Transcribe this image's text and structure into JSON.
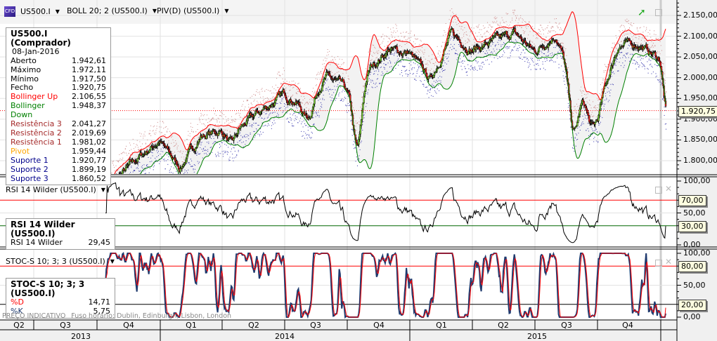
{
  "header": {
    "symbol": "US500.I",
    "indicator1": "BOLL 20; 2 (US500.I)",
    "indicator2": "PIV(D) (US500.I)",
    "logo_text": "CFD"
  },
  "info_box": {
    "title": "US500.I (Comprador)",
    "date": "08-Jan-2016",
    "rows": [
      {
        "label": "Aberto",
        "value": "1.942,61",
        "color": "#000000"
      },
      {
        "label": "Máximo",
        "value": "1.972,11",
        "color": "#000000"
      },
      {
        "label": "Mínimo",
        "value": "1.917,50",
        "color": "#000000"
      },
      {
        "label": "Fecho",
        "value": "1.920,75",
        "color": "#000000"
      },
      {
        "label": "Bollinger Up",
        "value": "2.106,55",
        "color": "#ff0000"
      },
      {
        "label": "Bollinger Down",
        "value": "1.948,37",
        "color": "#008000"
      },
      {
        "label": "Resistência 3",
        "value": "2.041,27",
        "color": "#a52a2a"
      },
      {
        "label": "Resistência 2",
        "value": "2.019,69",
        "color": "#a52a2a"
      },
      {
        "label": "Resistência 1",
        "value": "1.981,02",
        "color": "#a52a2a"
      },
      {
        "label": "Pivot",
        "value": "1.959,44",
        "color": "#ffa500"
      },
      {
        "label": "Suporte 1",
        "value": "1.920,77",
        "color": "#00008b"
      },
      {
        "label": "Suporte 2",
        "value": "1.899,19",
        "color": "#00008b"
      },
      {
        "label": "Suporte 3",
        "value": "1.860,52",
        "color": "#00008b"
      }
    ]
  },
  "price_axis": {
    "ticks": [
      "2.150,00",
      "2.100,00",
      "2.050,00",
      "2.000,00",
      "1.950,00",
      "1.900,00",
      "1.850,00",
      "1.800,00"
    ],
    "current": "1.920,75"
  },
  "rsi": {
    "title": "RSI 14 Wilder (US500.I)",
    "box_title": "RSI 14 Wilder (US500.I)",
    "label": "RSI 14 Wilder",
    "value": "29,45",
    "ticks": [
      "100,00",
      "50,00",
      "0,00"
    ],
    "levels": [
      "70,00",
      "30,00"
    ]
  },
  "stoch": {
    "title": "STOC-S 10; 3; 3 (US500.I)",
    "box_title": "STOC-S 10; 3; 3 (US500.I)",
    "d_label": "%D",
    "d_value": "14,71",
    "k_label": "%K",
    "k_value": "5,75",
    "ticks": [
      "100,00",
      "50,00",
      "0,00"
    ],
    "levels": [
      "80,00",
      "20,00"
    ]
  },
  "footer": {
    "indicative": "PREÇO INDICATIVO",
    "timezone": "Fuso horário: Dublin, Edinburgh, Lisbon, London"
  },
  "time_axis": {
    "quarters": [
      "Q2",
      "Q3",
      "Q4",
      "Q1",
      "Q2",
      "Q3",
      "Q4",
      "Q1",
      "Q2",
      "Q3",
      "Q4"
    ],
    "years": [
      "2013",
      "2014",
      "2015"
    ]
  },
  "colors": {
    "bb_up": "#ff0000",
    "bb_down": "#008000",
    "resistance": "#a52a2a",
    "support": "#00008b",
    "rsi_line": "#000000",
    "stoch_k": "#1f3a6e",
    "stoch_d": "#ff0000"
  },
  "chart_data": {
    "type": "candlestick",
    "price_range": [
      1770,
      2190
    ],
    "monthly_close": [
      [
        "2013-10",
        1757
      ],
      [
        "2013-11",
        1806
      ],
      [
        "2013-12",
        1848
      ],
      [
        "2014-01",
        1783
      ],
      [
        "2014-02",
        1859
      ],
      [
        "2014-03",
        1872
      ],
      [
        "2014-04",
        1884
      ],
      [
        "2014-05",
        1924
      ],
      [
        "2014-06",
        1960
      ],
      [
        "2014-07",
        1931
      ],
      [
        "2014-08",
        2003
      ],
      [
        "2014-09",
        1972
      ],
      [
        "2014-10",
        2018
      ],
      [
        "2014-11",
        2068
      ],
      [
        "2014-12",
        2059
      ],
      [
        "2015-01",
        1995
      ],
      [
        "2015-02",
        2105
      ],
      [
        "2015-03",
        2068
      ],
      [
        "2015-04",
        2086
      ],
      [
        "2015-05",
        2107
      ],
      [
        "2015-06",
        2063
      ],
      [
        "2015-07",
        2104
      ],
      [
        "2015-08",
        1972
      ],
      [
        "2015-09",
        1920
      ],
      [
        "2015-10",
        2079
      ],
      [
        "2015-11",
        2080
      ],
      [
        "2015-12",
        2044
      ],
      [
        "2016-01",
        1921
      ]
    ]
  }
}
